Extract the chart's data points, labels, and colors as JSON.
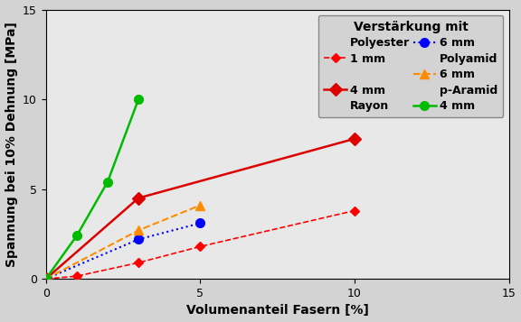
{
  "xlabel": "Volumenanteil Fasern [%]",
  "ylabel": "Spannung bei 10% Dehnung [MPa]",
  "xlim": [
    0,
    15
  ],
  "ylim": [
    0,
    15
  ],
  "xticks": [
    0,
    5,
    10,
    15
  ],
  "yticks": [
    0,
    5,
    10,
    15
  ],
  "background_color": "#d3d3d3",
  "plot_background_color": "#e8e8e8",
  "series": [
    {
      "mat": "Polyester",
      "size": "1 mm",
      "x": [
        0,
        1,
        3,
        5,
        10
      ],
      "y": [
        0,
        0.15,
        0.9,
        1.8,
        3.8
      ],
      "color": "#ff0000",
      "linestyle": "--",
      "marker": "D",
      "markersize": 5,
      "linewidth": 1.2
    },
    {
      "mat": "Polyester",
      "size": "4 mm",
      "x": [
        0,
        3,
        10
      ],
      "y": [
        0,
        4.5,
        7.8
      ],
      "color": "#dd0000",
      "linestyle": "-",
      "marker": "D",
      "markersize": 7,
      "linewidth": 1.8
    },
    {
      "mat": "Rayon",
      "size": "6 mm",
      "x": [
        0,
        3,
        5
      ],
      "y": [
        0,
        2.2,
        3.1
      ],
      "color": "#0000ff",
      "linestyle": ":",
      "marker": "o",
      "markersize": 7,
      "linewidth": 1.5
    },
    {
      "mat": "Polyamid",
      "size": "6 mm",
      "x": [
        0,
        3,
        5
      ],
      "y": [
        0,
        2.7,
        4.1
      ],
      "color": "#ff8c00",
      "linestyle": "--",
      "marker": "^",
      "markersize": 7,
      "linewidth": 1.5
    },
    {
      "mat": "p-Aramid",
      "size": "4 mm",
      "x": [
        0,
        1,
        2,
        3
      ],
      "y": [
        0,
        2.4,
        5.4,
        10.0
      ],
      "color": "#00bb00",
      "linestyle": "-",
      "marker": "o",
      "markersize": 7,
      "linewidth": 1.8
    }
  ],
  "legend_title": "Verstärkung mit",
  "legend_mats": [
    "Polyester",
    "",
    "Rayon",
    "Polyamid",
    "p-Aramid"
  ],
  "legend_sizes": [
    "1 mm",
    "4 mm",
    "6 mm",
    "6 mm",
    "4 mm"
  ],
  "font_size_labels": 10,
  "font_size_ticks": 9,
  "font_size_legend": 9,
  "font_size_legend_title": 10
}
